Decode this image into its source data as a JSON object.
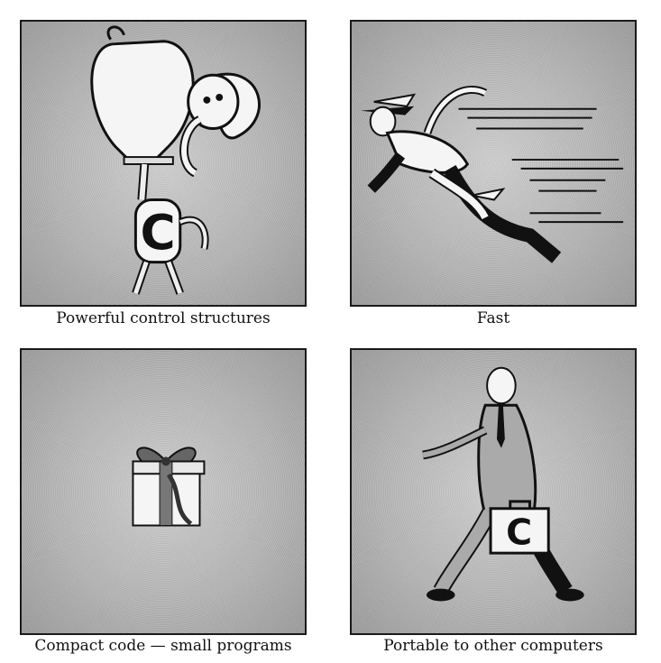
{
  "panels": [
    {
      "caption": "Powerful control structures",
      "letter": "C",
      "illustration": "elephant-lifted-by-strongman-icon"
    },
    {
      "caption": "Fast",
      "illustration": "running-winged-hero-icon"
    },
    {
      "caption": "Compact code — small programs",
      "illustration": "gift-box-icon"
    },
    {
      "caption": "Portable to other computers",
      "letter": "C",
      "illustration": "man-with-briefcase-icon"
    }
  ]
}
